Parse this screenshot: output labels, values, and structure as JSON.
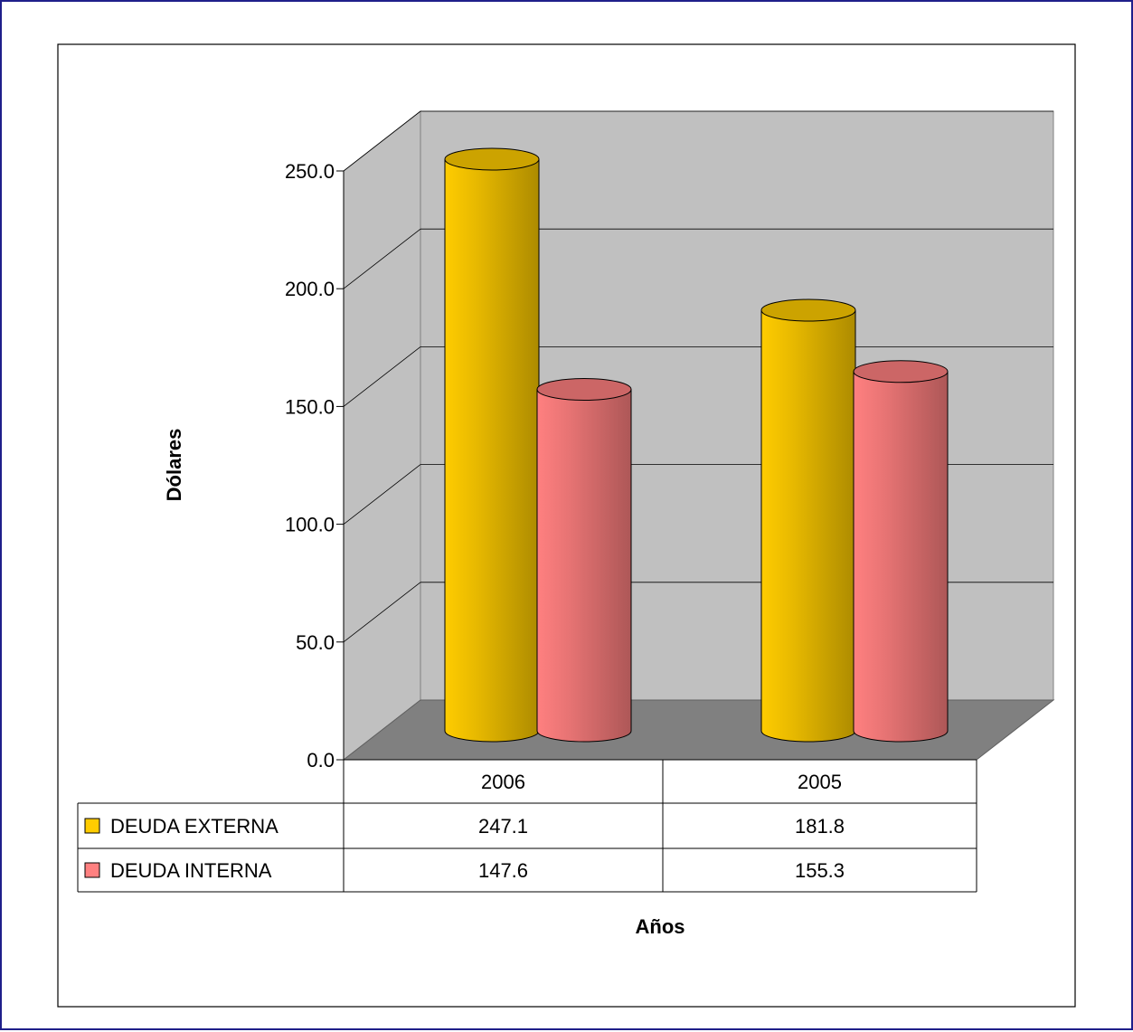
{
  "chart_data": {
    "type": "bar",
    "subtype": "3d-cylinder",
    "title": "",
    "xlabel": "Años",
    "ylabel": "Dólares",
    "categories": [
      "2006",
      "2005"
    ],
    "series": [
      {
        "name": "DEUDA EXTERNA",
        "values": [
          247.1,
          181.8
        ],
        "value_labels": [
          "247.1",
          "181.8"
        ],
        "color": "#ffcc00"
      },
      {
        "name": "DEUDA INTERNA",
        "values": [
          147.6,
          155.3
        ],
        "value_labels": [
          "147.6",
          "155.3"
        ],
        "color": "#ff8080"
      }
    ],
    "ylim": [
      0,
      250
    ],
    "yticks": [
      0,
      50,
      100,
      150,
      200,
      250
    ],
    "ytick_labels": [
      "0.0",
      "50.0",
      "100.0",
      "150.0",
      "200.0",
      "250.0"
    ],
    "grid": true,
    "legend": "data-table",
    "data_table": true,
    "colors": {
      "back_wall": "#c0c0c0",
      "floor": "#808080",
      "frame_border": "#1f1f8a"
    }
  }
}
